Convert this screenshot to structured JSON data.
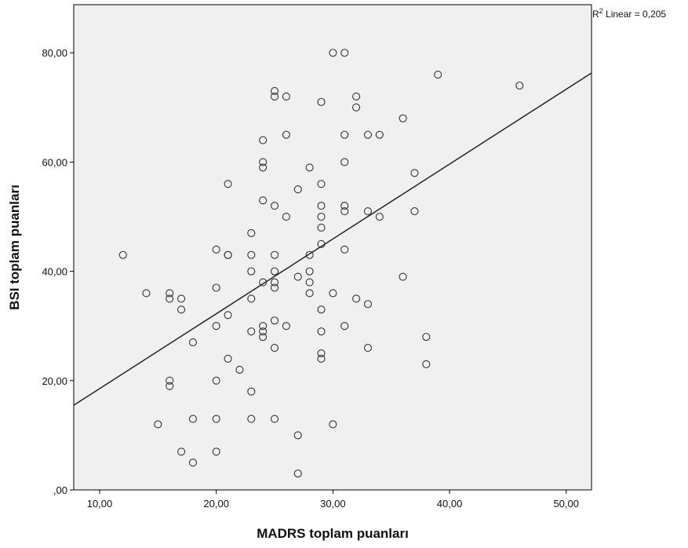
{
  "chart_data": {
    "type": "scatter",
    "xlabel": "MADRS toplam puanları",
    "ylabel": "BSI toplam puanları",
    "annotation": {
      "r": "R",
      "sup": "2",
      "text": " Linear = 0,205"
    },
    "x": [
      12,
      14,
      15,
      16,
      16,
      16,
      16,
      17,
      17,
      17,
      18,
      18,
      18,
      20,
      20,
      20,
      20,
      20,
      20,
      21,
      21,
      21,
      21,
      21,
      22,
      23,
      23,
      23,
      23,
      23,
      23,
      23,
      24,
      24,
      24,
      24,
      24,
      24,
      24,
      24,
      25,
      25,
      25,
      25,
      25,
      25,
      25,
      25,
      25,
      25,
      26,
      26,
      26,
      26,
      27,
      27,
      27,
      27,
      28,
      28,
      28,
      28,
      28,
      29,
      29,
      29,
      29,
      29,
      29,
      29,
      29,
      29,
      29,
      30,
      30,
      30,
      31,
      31,
      31,
      31,
      31,
      31,
      31,
      32,
      32,
      32,
      33,
      33,
      33,
      33,
      34,
      34,
      36,
      36,
      37,
      37,
      38,
      38,
      39,
      46
    ],
    "y": [
      43,
      36,
      12,
      36,
      35,
      20,
      19,
      35,
      33,
      7,
      27,
      13,
      5,
      44,
      37,
      30,
      20,
      13,
      7,
      56,
      43,
      43,
      32,
      24,
      22,
      47,
      43,
      40,
      35,
      29,
      18,
      13,
      64,
      60,
      59,
      53,
      38,
      30,
      29,
      28,
      73,
      72,
      52,
      43,
      40,
      38,
      37,
      31,
      26,
      13,
      72,
      65,
      50,
      30,
      55,
      39,
      10,
      3,
      59,
      43,
      40,
      38,
      36,
      71,
      56,
      52,
      50,
      48,
      45,
      33,
      29,
      25,
      24,
      80,
      36,
      12,
      80,
      65,
      60,
      52,
      51,
      44,
      30,
      72,
      70,
      35,
      65,
      51,
      34,
      26,
      65,
      50,
      68,
      39,
      58,
      51,
      28,
      23,
      76,
      74
    ],
    "fit": {
      "x": [
        7.78,
        52.17
      ],
      "y": [
        15.5,
        76.3
      ]
    },
    "xlim": [
      7.78,
      52.17
    ],
    "ylim": [
      0,
      88.8
    ],
    "xticks": [
      {
        "value": 10,
        "label": "10,00"
      },
      {
        "value": 20,
        "label": "20,00"
      },
      {
        "value": 30,
        "label": "30,00"
      },
      {
        "value": 40,
        "label": "40,00"
      },
      {
        "value": 50,
        "label": "50,00"
      }
    ],
    "yticks": [
      {
        "value": 0,
        "label": ",00"
      },
      {
        "value": 20,
        "label": "20,00"
      },
      {
        "value": 40,
        "label": "40,00"
      },
      {
        "value": 60,
        "label": "60,00"
      },
      {
        "value": 80,
        "label": "80,00"
      }
    ],
    "plot_color": "#f0f0f0",
    "marker_color": "#333333",
    "line_color": "#222222"
  }
}
